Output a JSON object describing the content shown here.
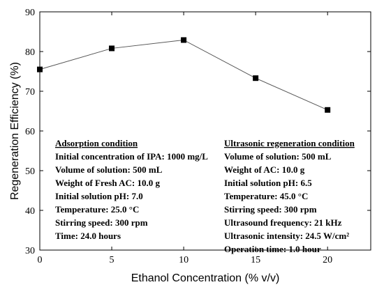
{
  "chart_data": {
    "type": "line",
    "xlabel": "Ethanol Concentration (% v/v)",
    "ylabel": "Regeneration Efficiency (%)",
    "xlim": [
      0,
      23
    ],
    "ylim": [
      30,
      90
    ],
    "x_ticks": [
      0,
      5,
      10,
      15,
      20
    ],
    "y_ticks": [
      30,
      40,
      50,
      60,
      70,
      80,
      90
    ],
    "grid": false,
    "series": [
      {
        "x": [
          0,
          5,
          10,
          15,
          20
        ],
        "values": [
          75.5,
          80.8,
          82.9,
          73.3,
          65.3
        ]
      }
    ],
    "annotations": {
      "adsorption": {
        "title": "Adsorption condition",
        "lines": [
          "Initial concentration of IPA: 1000 mg/L",
          "Volume of solution: 500 mL",
          "Weight of  Fresh AC: 10.0 g",
          "Initial solution pH: 7.0",
          "Temperature: 25.0 °C",
          "Stirring speed: 300 rpm",
          "Time: 24.0 hours"
        ]
      },
      "ultrasonic": {
        "title": "Ultrasonic regeneration condition",
        "lines": [
          "Volume of solution: 500 mL",
          "Weight of  AC: 10.0 g",
          "Initial solution pH: 6.5",
          "Temperature: 45.0 °C",
          "Stirring speed: 300 rpm",
          "Ultrasound frequency: 21 kHz",
          "Ultrasonic intensity: 24.5 W/cm²",
          "Operation time: 1.0 hour"
        ]
      }
    }
  },
  "colors": {
    "line": "#555555",
    "marker": "#000000",
    "axis": "#000000"
  }
}
